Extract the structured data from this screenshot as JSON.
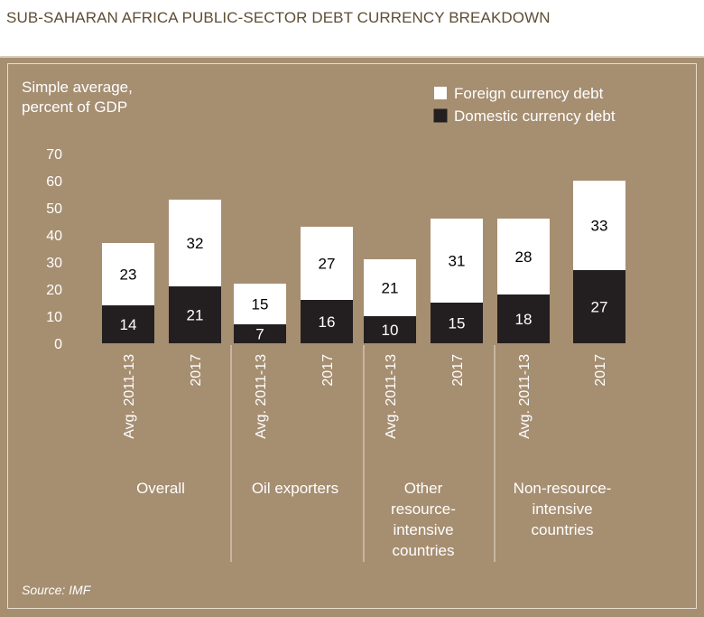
{
  "header": {
    "title": "SUB-SAHARAN AFRICA PUBLIC-SECTOR DEBT CURRENCY BREAKDOWN"
  },
  "colors": {
    "panel": "#a68e71",
    "foreign": "#ffffff",
    "domestic": "#231f20",
    "title": "#5f4d34"
  },
  "chart_data": {
    "type": "bar",
    "stacked": true,
    "ylabel_lines": [
      "Simple average,",
      "percent of GDP"
    ],
    "yticks": [
      0,
      10,
      20,
      30,
      40,
      50,
      60,
      70
    ],
    "ylim": [
      0,
      72
    ],
    "legend": [
      "Foreign currency debt",
      "Domestic currency debt"
    ],
    "legend_placement": "top-right",
    "groups": [
      {
        "label_lines": [
          "Overall"
        ],
        "categories": [
          "Avg. 2011-13",
          "2017"
        ]
      },
      {
        "label_lines": [
          "Oil exporters"
        ],
        "categories": [
          "Avg. 2011-13",
          "2017"
        ]
      },
      {
        "label_lines": [
          "Other",
          "resource-",
          "intensive",
          "countries"
        ],
        "categories": [
          "Avg. 2011-13",
          "2017"
        ]
      },
      {
        "label_lines": [
          "Non-resource-",
          "intensive",
          "countries"
        ],
        "categories": [
          "Avg. 2011-13",
          "2017"
        ]
      }
    ],
    "series": [
      {
        "name": "Domestic currency debt",
        "values": [
          14,
          21,
          7,
          16,
          10,
          15,
          18,
          27
        ]
      },
      {
        "name": "Foreign currency debt",
        "values": [
          23,
          32,
          15,
          27,
          21,
          31,
          28,
          33
        ]
      }
    ],
    "source": "Source: IMF"
  }
}
